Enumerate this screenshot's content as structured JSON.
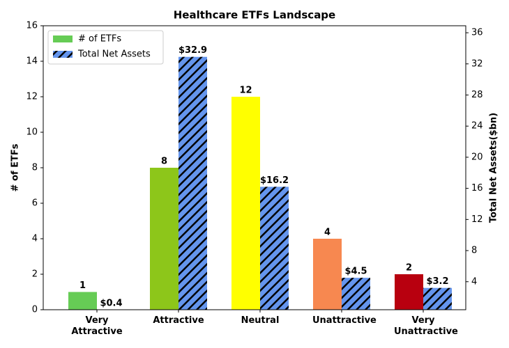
{
  "chart_data": {
    "type": "bar",
    "title": "Healthcare ETFs Landscape",
    "categories": [
      "Very Attractive",
      "Attractive",
      "Neutral",
      "Unattractive",
      "Very Unattractive"
    ],
    "y_label": "# of ETFs",
    "y2_label": "Total Net Assets($bn)",
    "series": [
      {
        "name": "# of ETFs",
        "color": "#66cc55",
        "colors": [
          "#66cc55",
          "#8dc61a",
          "#ffff00",
          "#f78850",
          "#b8000f"
        ],
        "values": [
          1,
          8,
          12,
          4,
          2
        ]
      },
      {
        "name": "Total Net Assets",
        "color": "#6495ed",
        "hatch": true,
        "axis": "y2",
        "values": [
          0.4,
          32.9,
          16.2,
          4.5,
          3.2
        ],
        "value_labels": [
          "$0.4",
          "$32.9",
          "$16.2",
          "$4.5",
          "$3.2"
        ]
      }
    ],
    "ylim": [
      0,
      16
    ],
    "yticks": [
      0,
      2,
      4,
      6,
      8,
      10,
      12,
      14,
      16
    ],
    "y2lim": [
      0.4,
      36.9
    ],
    "y2ticks": [
      4,
      8,
      12,
      16,
      20,
      24,
      28,
      32,
      36
    ],
    "legend": "upper left"
  }
}
